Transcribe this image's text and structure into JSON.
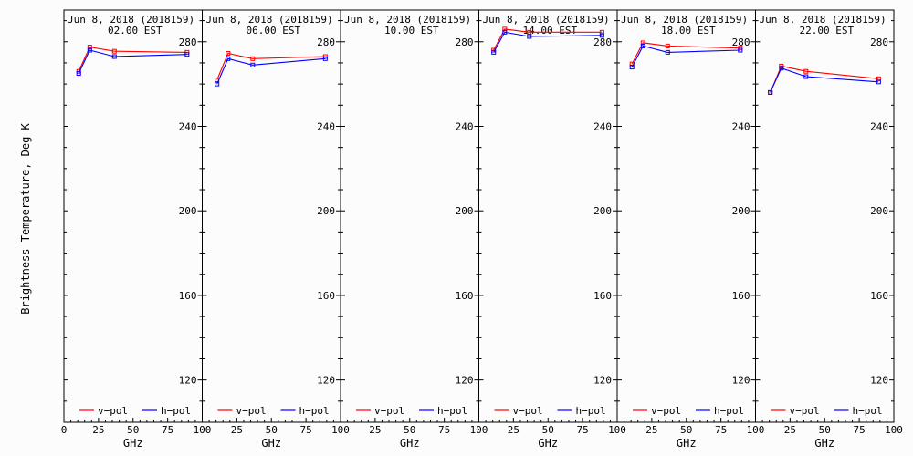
{
  "chart_data": {
    "type": "line",
    "ylabel": "Brightness Temperature, Deg K",
    "xlabel": "GHz",
    "xlim": [
      0,
      100
    ],
    "ylim": [
      100,
      295
    ],
    "x_ticks": [
      "0",
      "25",
      "50",
      "75",
      "100"
    ],
    "x_ticks_edge": [
      "25",
      "50",
      "75",
      "100"
    ],
    "y_ticks": [
      120,
      160,
      200,
      240,
      280
    ],
    "legend": {
      "v_pol": "v−pol",
      "h_pol": "h−pol",
      "position": "bottom"
    },
    "colors": {
      "v_pol": "#ff0000",
      "h_pol": "#0000ff"
    },
    "panels": [
      {
        "title": "Jun  8, 2018 (2018159)",
        "time": "02.00 EST",
        "series": [
          {
            "name": "v−pol",
            "x": [
              10.7,
              18.7,
              36.5,
              89.0
            ],
            "values": [
              266,
              277.5,
              275.5,
              275
            ]
          },
          {
            "name": "h−pol",
            "x": [
              10.7,
              18.7,
              36.5,
              89.0
            ],
            "values": [
              265,
              276,
              273,
              274
            ]
          }
        ]
      },
      {
        "title": "Jun  8, 2018 (2018159)",
        "time": "06.00 EST",
        "series": [
          {
            "name": "v−pol",
            "x": [
              10.7,
              18.7,
              36.5,
              89.0
            ],
            "values": [
              262,
              274.5,
              272,
              273
            ]
          },
          {
            "name": "h−pol",
            "x": [
              10.7,
              18.7,
              36.5,
              89.0
            ],
            "values": [
              260,
              272,
              269,
              272
            ]
          }
        ]
      },
      {
        "title": "Jun  8, 2018 (2018159)",
        "time": "10.00 EST",
        "series": [
          {
            "name": "v−pol",
            "x": [],
            "values": []
          },
          {
            "name": "h−pol",
            "x": [],
            "values": []
          }
        ]
      },
      {
        "title": "Jun  8, 2018 (2018159)",
        "time": "14.00 EST",
        "series": [
          {
            "name": "v−pol",
            "x": [
              10.7,
              18.7,
              36.5,
              89.0
            ],
            "values": [
              276,
              286,
              284.5,
              284.5
            ]
          },
          {
            "name": "h−pol",
            "x": [
              10.7,
              18.7,
              36.5,
              89.0
            ],
            "values": [
              275,
              284.5,
              282.5,
              283
            ]
          }
        ]
      },
      {
        "title": "Jun  8, 2018 (2018159)",
        "time": "18.00 EST",
        "series": [
          {
            "name": "v−pol",
            "x": [
              10.7,
              18.7,
              36.5,
              89.0
            ],
            "values": [
              269.5,
              279.5,
              278,
              277
            ]
          },
          {
            "name": "h−pol",
            "x": [
              10.7,
              18.7,
              36.5,
              89.0
            ],
            "values": [
              268,
              278,
              275,
              276
            ]
          }
        ]
      },
      {
        "title": "Jun  8, 2018 (2018159)",
        "time": "22.00 EST",
        "series": [
          {
            "name": "v−pol",
            "x": [
              10.7,
              18.7,
              36.5,
              89.0
            ],
            "values": [
              256,
              268.5,
              266,
              262.5
            ]
          },
          {
            "name": "h−pol",
            "x": [
              10.7,
              18.7,
              36.5,
              89.0
            ],
            "values": [
              256,
              267.5,
              263.5,
              261
            ]
          }
        ]
      }
    ]
  }
}
